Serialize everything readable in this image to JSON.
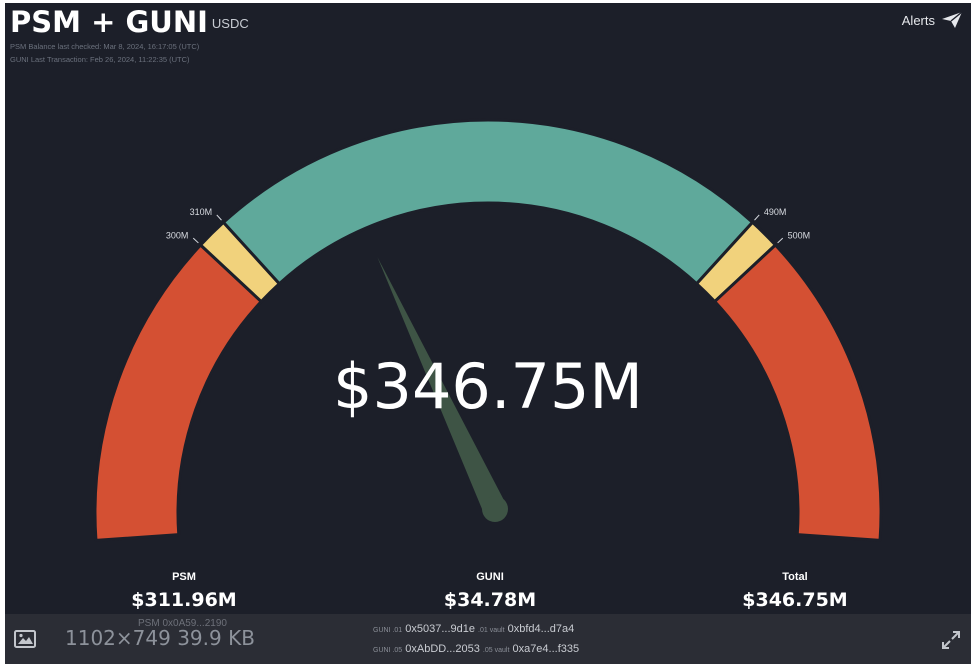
{
  "header": {
    "title": "PSM + GUNI",
    "unit": "USDC",
    "psm_checked": "PSM Balance last checked: Mar 8, 2024, 16:17:05 (UTC)",
    "guni_last_tx": "GUNI Last Transaction: Feb 26, 2024, 11:22:35 (UTC)"
  },
  "alerts": {
    "label": "Alerts",
    "icon": "paper-plane-icon"
  },
  "gauge": {
    "center_value": "$346.75M",
    "range_min": 200,
    "range_max": 600,
    "value": 346.75,
    "ticks": {
      "t300": "300M",
      "t310": "310M",
      "t490": "490M",
      "t500": "500M"
    },
    "colors": {
      "ok": "#5fa99b",
      "warn": "#f1d27c",
      "danger": "#d45033",
      "needle": "#3e5445"
    }
  },
  "stats": {
    "psm": {
      "label": "PSM",
      "value": "$311.96M"
    },
    "guni": {
      "label": "GUNI",
      "value": "$34.78M"
    },
    "total": {
      "label": "Total",
      "value": "$346.75M"
    }
  },
  "footer": {
    "dims": "1102×749 39.9 KB",
    "psm_addr_label": "PSM",
    "psm_addr": "0x0A59...2190",
    "guni_rows": [
      {
        "label": "GUNI .01",
        "addr": "0x5037...9d1e",
        "vault_label": ".01 vault",
        "vault": "0xbfd4...d7a4"
      },
      {
        "label": "GUNI .05",
        "addr": "0xAbDD...2053",
        "vault_label": ".05 vault",
        "vault": "0xa7e4...f335"
      }
    ]
  }
}
